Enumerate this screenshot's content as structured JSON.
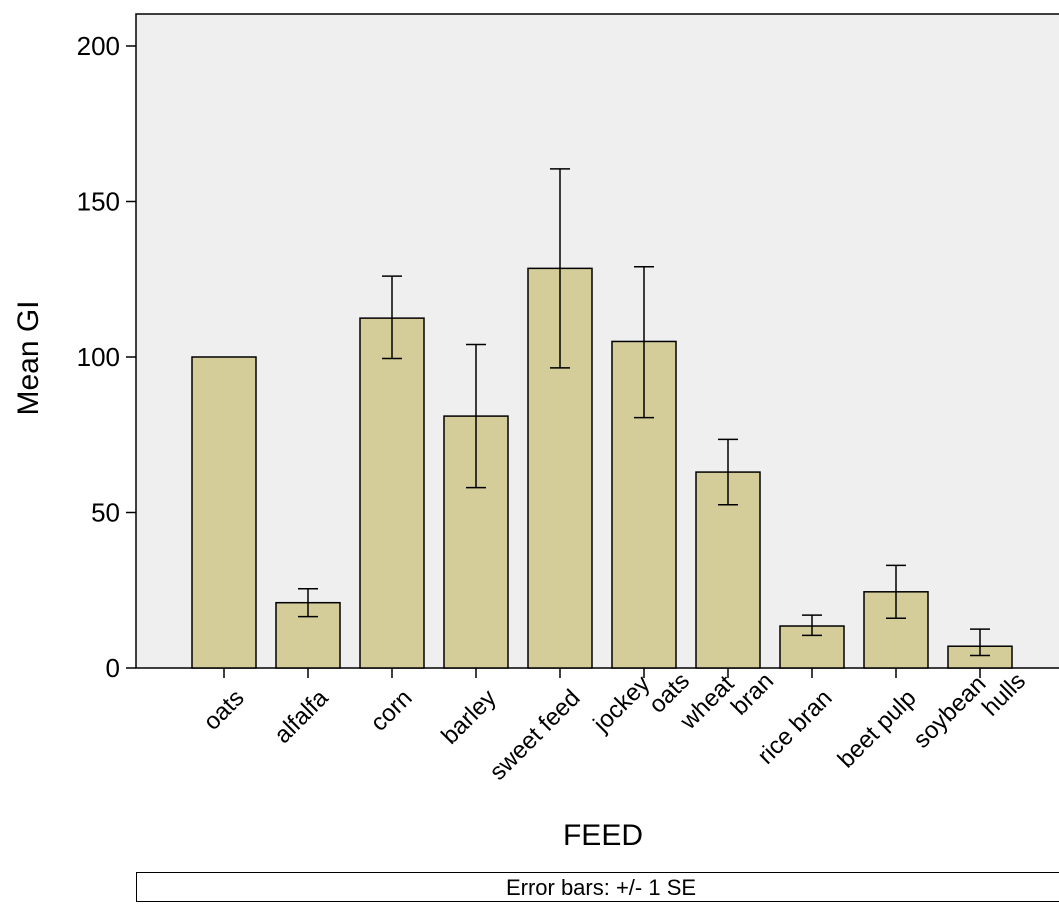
{
  "chart_data": {
    "type": "bar",
    "xlabel": "FEED",
    "ylabel": "Mean GI",
    "ylim": [
      0,
      200
    ],
    "yticks": [
      0,
      50,
      100,
      150,
      200
    ],
    "categories": [
      [
        "oats"
      ],
      [
        "alfalfa"
      ],
      [
        "corn"
      ],
      [
        "barley"
      ],
      [
        "sweet feed"
      ],
      [
        "jockey",
        "oats"
      ],
      [
        "wheat",
        "bran"
      ],
      [
        "rice bran"
      ],
      [
        "beet pulp"
      ],
      [
        "soybean",
        "hulls"
      ]
    ],
    "values": [
      100,
      21,
      112.5,
      81,
      128.5,
      105,
      63,
      13.5,
      24.5,
      7
    ],
    "error_low": [
      null,
      16.5,
      99.5,
      58,
      96.5,
      80.5,
      52.5,
      10.5,
      16,
      4
    ],
    "error_high": [
      null,
      25.5,
      126,
      104,
      160.5,
      129,
      73.5,
      17,
      33,
      12.5
    ],
    "grid": false,
    "bar_color": "#d4cd9a",
    "plot_background": "#efefef",
    "footnote": "Error bars: +/- 1 SE"
  }
}
